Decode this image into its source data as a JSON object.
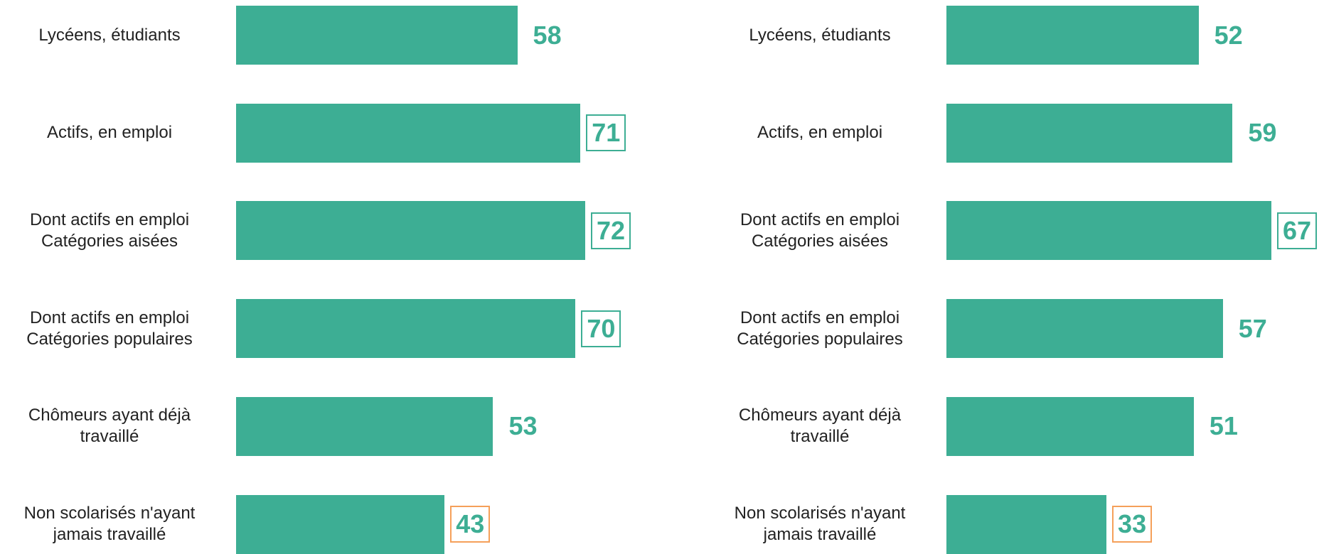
{
  "chart_data": [
    {
      "type": "bar",
      "orientation": "horizontal",
      "color": "#3dae94",
      "categories": [
        "Lycéens, étudiants",
        "Actifs, en emploi",
        "Dont actifs en emploi\nCatégories aisées",
        "Dont actifs en emploi \nCatégories populaires",
        "Chômeurs ayant déjà\ntravaillé",
        "Non scolarisés n'ayant\njamais travaillé"
      ],
      "values": [
        58,
        71,
        72,
        70,
        53,
        43
      ],
      "value_label_boxes": [
        null,
        "#3dae94",
        "#3dae94",
        "#3dae94",
        null,
        "#f5a05a"
      ]
    },
    {
      "type": "bar",
      "orientation": "horizontal",
      "color": "#3dae94",
      "categories": [
        "Lycéens, étudiants",
        "Actifs, en emploi",
        "Dont actifs en emploi\nCatégories aisées",
        "Dont actifs en emploi \nCatégories populaires",
        "Chômeurs ayant déjà\ntravaillé",
        "Non scolarisés n'ayant\njamais travaillé"
      ],
      "values": [
        52,
        59,
        67,
        57,
        51,
        33
      ],
      "value_label_boxes": [
        null,
        null,
        "#3dae94",
        null,
        null,
        "#f5a05a"
      ]
    }
  ]
}
